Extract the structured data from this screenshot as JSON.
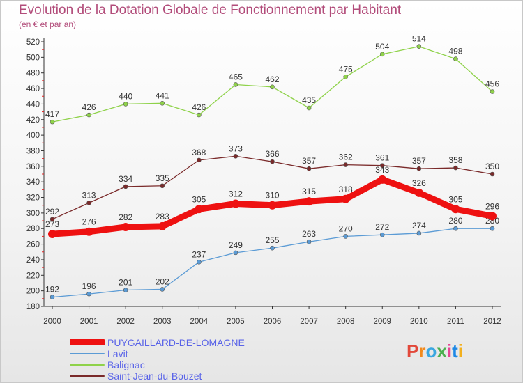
{
  "header": {
    "title": "Evolution de la Dotation Globale de Fonctionnement par Habitant",
    "subtitle": "(en € et par an)"
  },
  "logo": {
    "text": "Proxiti",
    "colors": [
      "#e2483a",
      "#f28a1c",
      "#3aa7e0",
      "#4caf50",
      "#e84393",
      "#1e88e5",
      "#f2b01e"
    ]
  },
  "chart_data": {
    "type": "line",
    "title": "Evolution de la Dotation Globale de Fonctionnement par Habitant",
    "subtitle": "(en € et par an)",
    "xlabel": "",
    "ylabel": "",
    "x": [
      "2000",
      "2001",
      "2002",
      "2003",
      "2004",
      "2005",
      "2006",
      "2007",
      "2008",
      "2009",
      "2010",
      "2011",
      "2012"
    ],
    "ylim": [
      180,
      520
    ],
    "yticks": [
      180,
      200,
      220,
      240,
      260,
      280,
      300,
      320,
      340,
      360,
      380,
      400,
      420,
      440,
      460,
      480,
      500,
      520
    ],
    "grid": false,
    "legend_position": "bottom-left",
    "series": [
      {
        "name": "Balignac",
        "color": "#8fd24a",
        "width": 1.3,
        "values": [
          417,
          426,
          440,
          441,
          426,
          465,
          462,
          435,
          475,
          504,
          514,
          498,
          456
        ]
      },
      {
        "name": "Saint-Jean-du-Bouzet",
        "color": "#7a2a2a",
        "width": 1.3,
        "values": [
          292,
          313,
          334,
          335,
          368,
          373,
          366,
          357,
          362,
          361,
          357,
          358,
          350
        ]
      },
      {
        "name": "Lavit",
        "color": "#5b9bd5",
        "width": 1.3,
        "values": [
          192,
          196,
          201,
          202,
          237,
          249,
          255,
          263,
          270,
          272,
          274,
          280,
          280
        ]
      },
      {
        "name": "PUYGAILLARD-DE-LOMAGNE",
        "color": "#ee1111",
        "width": 9,
        "values": [
          273,
          276,
          282,
          283,
          305,
          312,
          310,
          315,
          318,
          343,
          326,
          305,
          296
        ]
      }
    ],
    "legend": [
      "PUYGAILLARD-DE-LOMAGNE",
      "Lavit",
      "Balignac",
      "Saint-Jean-du-Bouzet"
    ]
  }
}
